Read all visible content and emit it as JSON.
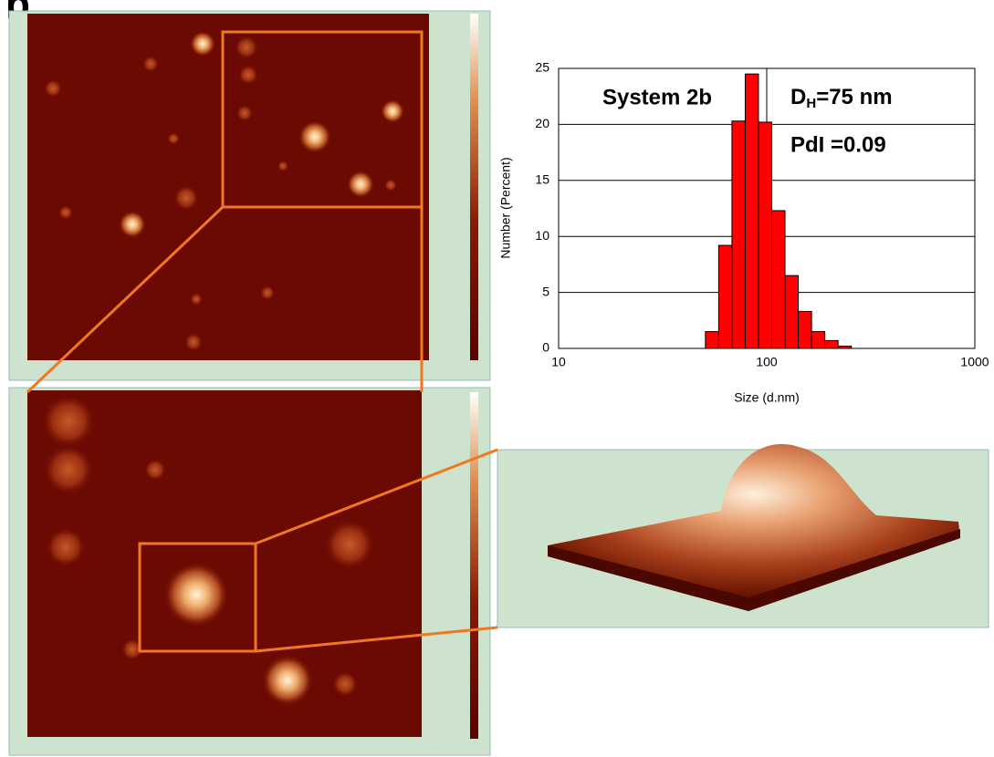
{
  "panel_label": "b.",
  "chart_data": {
    "type": "histogram",
    "bins": [
      50.75,
      58.77,
      68.06,
      78.82,
      91.28,
      105.7,
      122.4,
      141.8,
      164.2,
      190.1,
      220.2,
      255.0
    ],
    "values": [
      1.5,
      9.2,
      20.3,
      24.5,
      20.2,
      12.3,
      6.5,
      3.3,
      1.5,
      0.7,
      0.2
    ],
    "color": "#ff0000",
    "xlim": [
      10,
      1000
    ],
    "xticks": [
      10,
      100,
      1000
    ],
    "log_x": true,
    "ylim": [
      0,
      25
    ],
    "yticks": [
      0,
      5,
      10,
      15,
      20,
      25
    ],
    "grid": true,
    "xlabel": "Size (d.nm)",
    "ylabel": "Number (Percent)",
    "annotations": {
      "system": "System 2b",
      "dh_main": "D",
      "dh_sub": "H",
      "dh_rest": "=75 nm",
      "pdi": "PdI =0.09"
    }
  }
}
